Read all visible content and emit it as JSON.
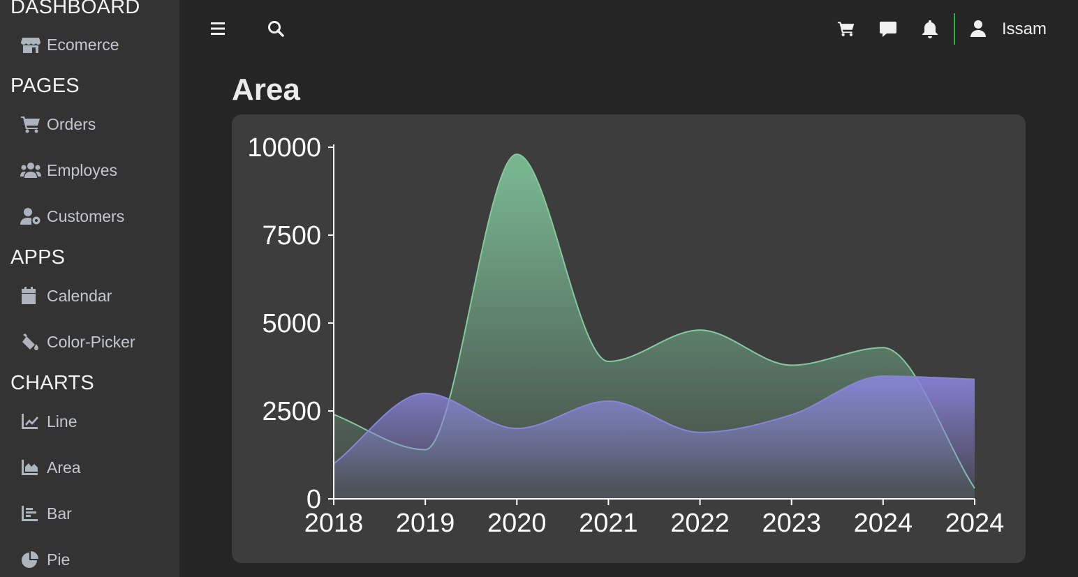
{
  "sidebar": {
    "sections": [
      {
        "title": "DASHBOARD",
        "items": [
          {
            "label": "Ecomerce",
            "icon": "store-icon"
          }
        ]
      },
      {
        "title": "PAGES",
        "items": [
          {
            "label": "Orders",
            "icon": "cart-icon"
          },
          {
            "label": "Employes",
            "icon": "users-icon"
          },
          {
            "label": "Customers",
            "icon": "user-gear-icon"
          }
        ]
      },
      {
        "title": "APPS",
        "items": [
          {
            "label": "Calendar",
            "icon": "calendar-icon"
          },
          {
            "label": "Color-Picker",
            "icon": "paint-bucket-icon"
          }
        ]
      },
      {
        "title": "CHARTS",
        "items": [
          {
            "label": "Line",
            "icon": "line-chart-icon"
          },
          {
            "label": "Area",
            "icon": "area-chart-icon"
          },
          {
            "label": "Bar",
            "icon": "bar-chart-icon"
          },
          {
            "label": "Pie",
            "icon": "pie-chart-icon"
          }
        ]
      }
    ]
  },
  "topbar": {
    "username": "Issam",
    "icons": [
      "menu-icon",
      "search-icon",
      "cart-icon",
      "message-icon",
      "bell-icon",
      "user-icon"
    ],
    "divider_color": "#1fb93a"
  },
  "page": {
    "title": "Area"
  },
  "colors": {
    "background": "#252525",
    "sidebar": "#333333",
    "card": "#3d3d3d",
    "green_series": "#82ca9d",
    "purple_series": "#8884d8"
  },
  "chart_data": {
    "type": "area",
    "x": [
      "2018",
      "2019",
      "2020",
      "2021",
      "2022",
      "2023",
      "2024",
      "2024"
    ],
    "series": [
      {
        "values": [
          2400,
          1398,
          9800,
          3908,
          4800,
          3800,
          4300,
          300
        ],
        "color": "#82ca9d"
      },
      {
        "values": [
          1000,
          3000,
          2000,
          2780,
          1890,
          2390,
          3490,
          3400
        ],
        "color": "#8884d8"
      }
    ],
    "y_ticks": [
      "0",
      "2500",
      "5000",
      "7500",
      "10000"
    ],
    "ylim": [
      0,
      10000
    ],
    "grid": false,
    "legend": false
  }
}
